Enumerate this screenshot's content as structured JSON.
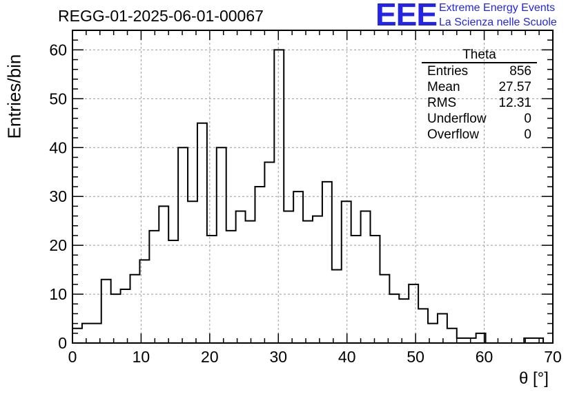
{
  "title": "REGG-01-2025-06-01-00067",
  "logo": {
    "text": "EEE",
    "line1": "Extreme Energy Events",
    "line2": "La Scienza nelle Scuole",
    "color": "#2424e6"
  },
  "stats": {
    "name": "Theta",
    "rows": [
      {
        "label": "Entries",
        "value": "856"
      },
      {
        "label": "Mean",
        "value": "27.57"
      },
      {
        "label": "RMS",
        "value": "12.31"
      },
      {
        "label": "Underflow",
        "value": "0"
      },
      {
        "label": "Overflow",
        "value": "0"
      }
    ]
  },
  "chart_data": {
    "type": "bar",
    "title": "REGG-01-2025-06-01-00067",
    "xlabel": "θ [°]",
    "ylabel": "Entries/bin",
    "xlim": [
      0,
      70
    ],
    "ylim": [
      0,
      64
    ],
    "bin_width": 1.4,
    "bin_edges_start": 0,
    "x_ticks": [
      "0",
      "10",
      "20",
      "30",
      "40",
      "50",
      "60",
      "70"
    ],
    "y_ticks": [
      "0",
      "10",
      "20",
      "30",
      "40",
      "50",
      "60"
    ],
    "grid": true,
    "values": [
      3,
      4,
      4,
      13,
      10,
      11,
      14,
      17,
      23,
      28,
      21,
      40,
      29,
      45,
      22,
      40,
      23,
      27,
      25,
      32,
      37,
      60,
      27,
      31,
      25,
      26,
      33,
      15,
      29,
      22,
      27,
      22,
      14,
      10,
      9,
      12,
      7,
      4,
      6,
      3,
      1,
      1,
      2,
      0,
      0,
      0,
      0,
      1,
      1,
      0
    ]
  }
}
